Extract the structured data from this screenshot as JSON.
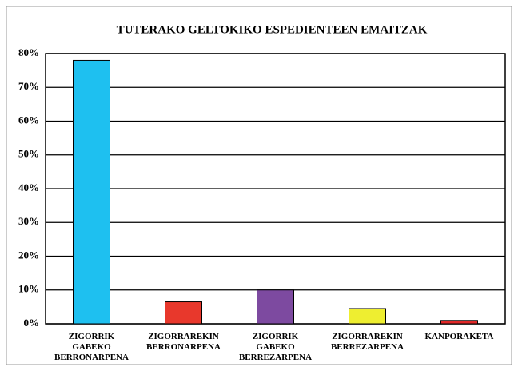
{
  "chart_data": {
    "type": "bar",
    "title": "TUTERAKO GELTOKIKO ESPEDIENTEEN EMAITZAK",
    "categories": [
      "ZIGORRIK GABEKO BERRONARPENA",
      "ZIGORRAREKIN BERRONARPENA",
      "ZIGORRIK GABEKO BERREZARPENA",
      "ZIGORRAREKIN BERREZARPENA",
      "KANPORAKETA"
    ],
    "values": [
      78,
      6.5,
      10,
      4.5,
      1
    ],
    "colors": [
      "#1ec0f0",
      "#e8382c",
      "#7d4aa0",
      "#eeee30",
      "#e02828"
    ],
    "ylim": [
      0,
      80
    ],
    "yticks": [
      {
        "value": 0,
        "label": "0%"
      },
      {
        "value": 10,
        "label": "10%"
      },
      {
        "value": 20,
        "label": "20%"
      },
      {
        "value": 30,
        "label": "30%"
      },
      {
        "value": 40,
        "label": "40%"
      },
      {
        "value": 50,
        "label": "50%"
      },
      {
        "value": 60,
        "label": "60%"
      },
      {
        "value": 70,
        "label": "70%"
      },
      {
        "value": 80,
        "label": "80%"
      }
    ],
    "grid": true
  }
}
